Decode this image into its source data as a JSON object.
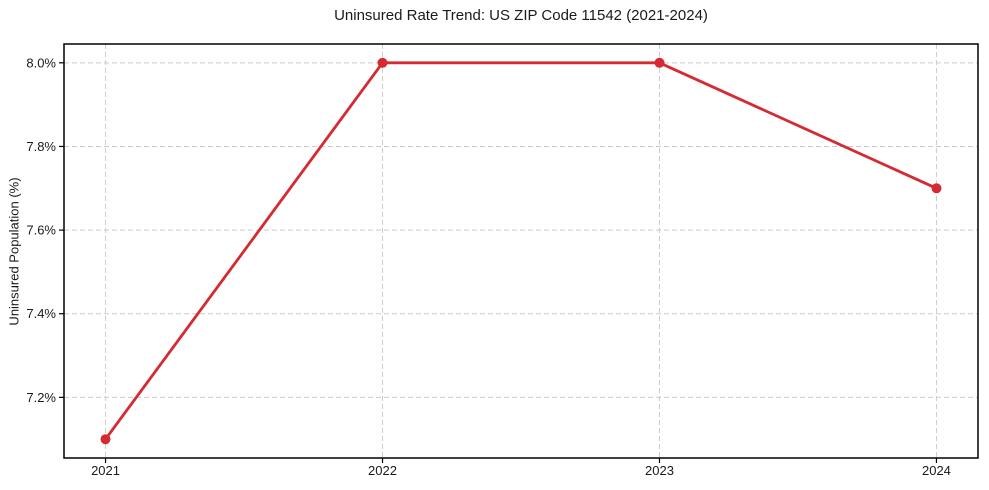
{
  "chart_data": {
    "type": "line",
    "title": "Uninsured Rate Trend: US ZIP Code 11542 (2021-2024)",
    "xlabel": "",
    "ylabel": "Uninsured Population (%)",
    "x": [
      2021,
      2022,
      2023,
      2024
    ],
    "series": [
      {
        "values": [
          7.1,
          8.0,
          8.0,
          7.7
        ],
        "color": "#d62a33",
        "marker": "circle"
      }
    ],
    "xticks": [
      2021,
      2022,
      2023,
      2024
    ],
    "xtick_labels": [
      "2021",
      "2022",
      "2023",
      "2024"
    ],
    "yticks": [
      7.2,
      7.4,
      7.6,
      7.8,
      8.0
    ],
    "ytick_labels": [
      "7.2%",
      "7.4%",
      "7.6%",
      "7.8%",
      "8.0%"
    ],
    "xlim": [
      2020.85,
      2024.15
    ],
    "ylim": [
      7.055,
      8.045
    ],
    "grid": true,
    "grid_style": "dashed",
    "grid_color": "#cccccc",
    "axes_frame_color": "#000000",
    "text_color": "#1a1a1a",
    "legend_position": "none"
  }
}
